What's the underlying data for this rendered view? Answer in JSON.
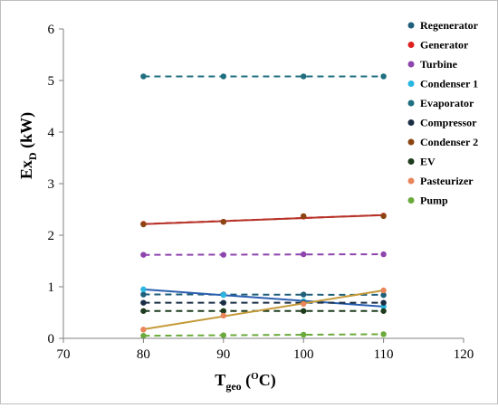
{
  "chart_data": {
    "type": "line",
    "title": "",
    "xlabel": {
      "main": "T",
      "sub": "geo",
      "unit_open": " (",
      "unit_sup": "O",
      "unit_close": "C)"
    },
    "ylabel": {
      "main": "Ex",
      "sub": "D",
      "unit": " (kW)"
    },
    "xlim": [
      70,
      120
    ],
    "ylim": [
      0,
      6
    ],
    "x_ticks": [
      70,
      80,
      90,
      100,
      110,
      120
    ],
    "y_ticks": [
      0,
      1,
      2,
      3,
      4,
      5,
      6
    ],
    "legend_position": "right",
    "grid": false,
    "x": [
      80,
      90,
      100,
      110
    ],
    "series": [
      {
        "name": "Regenerator",
        "color": "#1f5f7a",
        "trend_color": "#1f5f7a",
        "trend_style": "dashed",
        "values": [
          0.85,
          0.85,
          0.85,
          0.84
        ]
      },
      {
        "name": "Generator",
        "color": "#e02020",
        "trend_color": "#e02020",
        "trend_style": "dashed",
        "values": [
          2.22,
          2.26,
          2.36,
          2.38
        ]
      },
      {
        "name": "Turbine",
        "color": "#8e44ad",
        "trend_color": "#8e44ad",
        "trend_style": "dashed",
        "values": [
          1.62,
          1.62,
          1.63,
          1.63
        ]
      },
      {
        "name": "Condenser 1",
        "color": "#29b6e0",
        "trend_color": "#2b5fb0",
        "trend_style": "solid",
        "values": [
          0.95,
          0.84,
          0.72,
          0.62
        ]
      },
      {
        "name": "Evaporator",
        "color": "#1f6f80",
        "trend_color": "#1f6f80",
        "trend_style": "dashed",
        "values": [
          5.08,
          5.08,
          5.08,
          5.08
        ]
      },
      {
        "name": "Compressor",
        "color": "#1a2e45",
        "trend_color": "#1a2e45",
        "trend_style": "dashed",
        "values": [
          0.69,
          0.69,
          0.69,
          0.69
        ]
      },
      {
        "name": "Condenser 2",
        "color": "#8b4513",
        "trend_color": "#b5342a",
        "trend_style": "solid",
        "values": [
          2.21,
          2.26,
          2.37,
          2.37
        ]
      },
      {
        "name": "EV",
        "color": "#1d3b1d",
        "trend_color": "#1d3b1d",
        "trend_style": "dashed",
        "values": [
          0.53,
          0.53,
          0.53,
          0.53
        ]
      },
      {
        "name": "Pasteurizer",
        "color": "#e8855a",
        "trend_color": "#c49a3a",
        "trend_style": "solid",
        "values": [
          0.17,
          0.44,
          0.67,
          0.93
        ]
      },
      {
        "name": "Pump",
        "color": "#6aaa3a",
        "trend_color": "#6aaa3a",
        "trend_style": "dashed",
        "values": [
          0.05,
          0.06,
          0.07,
          0.08
        ]
      }
    ]
  }
}
